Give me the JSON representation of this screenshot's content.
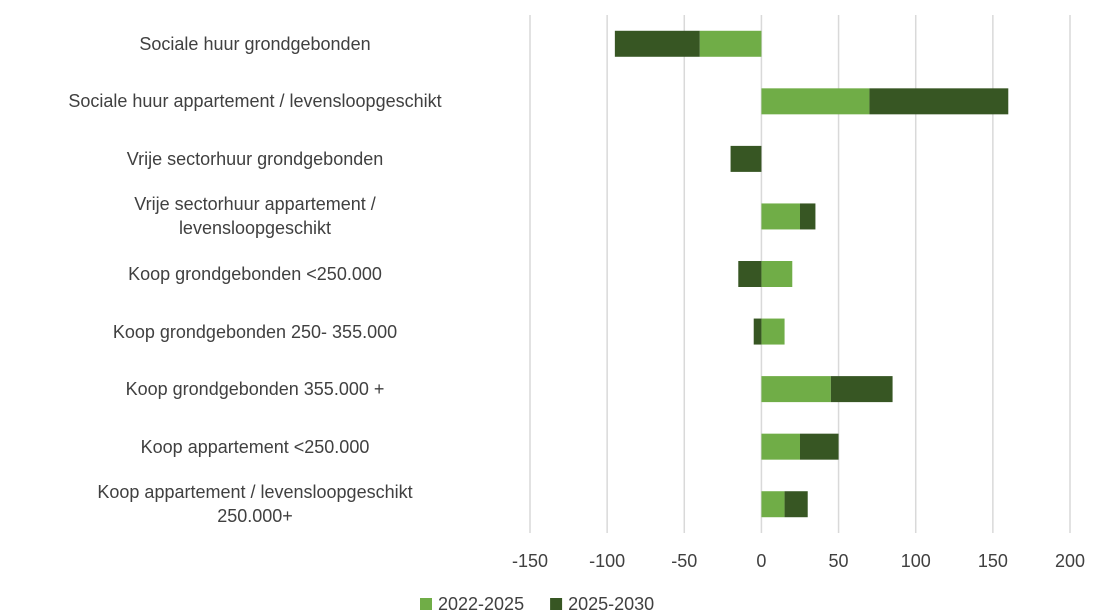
{
  "chart_data": {
    "type": "stacked_barh",
    "categories": [
      "Sociale huur grondgebonden",
      "Sociale huur appartement / levensloopgeschikt",
      "Vrije sectorhuur grondgebonden",
      "Vrije sectorhuur appartement /\nlevensloopgeschikt",
      "Koop grondgebonden <250.000",
      "Koop grondgebonden 250- 355.000",
      "Koop grondgebonden 355.000 +",
      "Koop appartement <250.000",
      "Koop appartement / levensloopgeschikt\n250.000+"
    ],
    "series": [
      {
        "name": "2022-2025",
        "color": "#70ad47",
        "values": [
          -40,
          70,
          0,
          25,
          20,
          15,
          45,
          25,
          15
        ]
      },
      {
        "name": "2025-2030",
        "color": "#375623",
        "values": [
          -55,
          90,
          -20,
          10,
          -15,
          -5,
          40,
          25,
          15
        ]
      }
    ],
    "xlim": [
      -150,
      200
    ],
    "xticks": [
      -150,
      -100,
      -50,
      0,
      50,
      100,
      150,
      200
    ],
    "grid": true,
    "legend": "bottom"
  }
}
